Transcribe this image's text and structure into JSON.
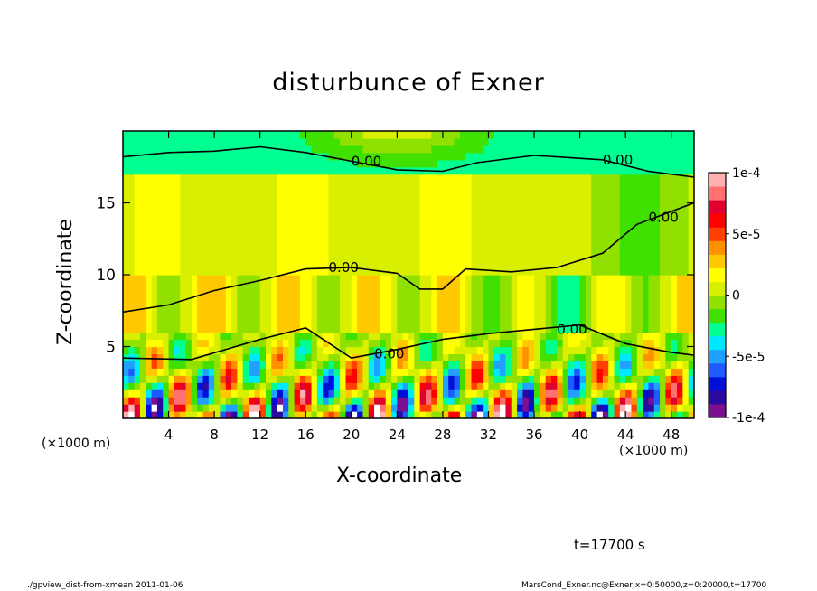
{
  "chart_data": {
    "type": "heatmap",
    "title": "disturbunce of Exner",
    "xlabel": "X-coordinate",
    "ylabel": "Z-coordinate",
    "x_unit_left": "(×1000 m)",
    "x_unit_right": "(×1000 m)",
    "xlim": [
      0,
      50
    ],
    "ylim": [
      0,
      20
    ],
    "xticks": [
      4,
      8,
      12,
      16,
      20,
      24,
      28,
      32,
      36,
      40,
      44,
      48
    ],
    "yticks": [
      5,
      10,
      15
    ],
    "colorbar": {
      "range": [
        -0.0001,
        0.0001
      ],
      "tick_values": [
        0.0001,
        5e-05,
        0,
        -5e-05,
        -0.0001
      ],
      "tick_labels": [
        "1e-4",
        "5e-5",
        "0",
        "-5e-5",
        "-1e-4"
      ],
      "colors": [
        "#7a1090",
        "#2a0aa0",
        "#0010d8",
        "#1e5aff",
        "#20a0ff",
        "#00e8ff",
        "#00ff90",
        "#40e000",
        "#90e000",
        "#d8f000",
        "#ffff00",
        "#ffc800",
        "#ff9000",
        "#ff4000",
        "#ff0000",
        "#e00030",
        "#ff7070",
        "#ffb0b0"
      ]
    },
    "contour_labels": [
      "0.00",
      "0.00",
      "0.00",
      "0.00",
      "0.00",
      "0.00"
    ],
    "field_summary": [
      {
        "z_range": [
          17,
          20
        ],
        "mean": -3e-05
      },
      {
        "z_range": [
          10,
          17
        ],
        "mean": 1e-05
      },
      {
        "z_range": [
          6,
          10
        ],
        "mean": 2e-05
      },
      {
        "z_range": [
          0,
          6
        ],
        "note": "alternating strong positive/negative cells"
      }
    ]
  },
  "annotations": {
    "time": "t=17700 s",
    "footer_left": "./gpview_dist-from-xmean   2011-01-06",
    "footer_right": "MarsCond_Exner.nc@Exner,x=0:50000,z=0:20000,t=17700"
  }
}
